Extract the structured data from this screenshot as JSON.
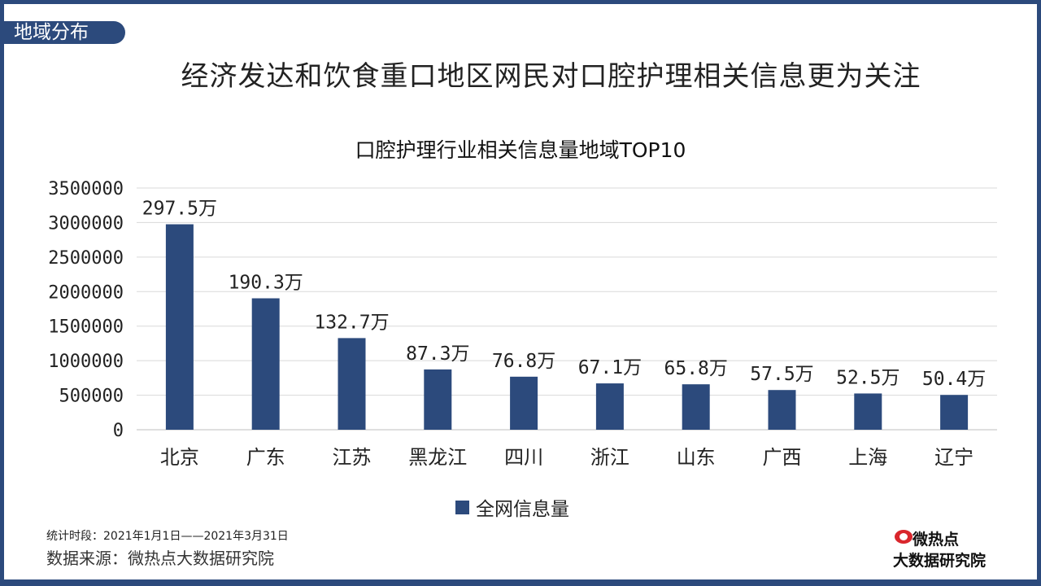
{
  "section_tag": "地域分布",
  "headline": "经济发达和饮食重口地区网民对口腔护理相关信息更为关注",
  "footnote": "统计时段：2021年1月1日——2021年3月31日",
  "source": "数据来源：微热点大数据研究院",
  "logo": {
    "top": "微热点",
    "bottom": "大数据研究院",
    "icon": "eye-icon",
    "color": "#d9262c"
  },
  "chart_data": {
    "type": "bar",
    "title": "口腔护理行业相关信息量地域TOP10",
    "categories": [
      "北京",
      "广东",
      "江苏",
      "黑龙江",
      "四川",
      "浙江",
      "山东",
      "广西",
      "上海",
      "辽宁"
    ],
    "series": [
      {
        "name": "全网信息量",
        "values": [
          2975000,
          1903000,
          1327000,
          873000,
          768000,
          671000,
          658000,
          575000,
          525000,
          504000
        ],
        "labels": [
          "297.5万",
          "190.3万",
          "132.7万",
          "87.3万",
          "76.8万",
          "67.1万",
          "65.8万",
          "57.5万",
          "52.5万",
          "50.4万"
        ],
        "color": "#2c4a7c"
      }
    ],
    "yticks": [
      "0",
      "500000",
      "1000000",
      "1500000",
      "2000000",
      "2500000",
      "3000000",
      "3500000"
    ],
    "ylim": [
      0,
      3500000
    ],
    "grid": true,
    "legend": "bottom"
  }
}
